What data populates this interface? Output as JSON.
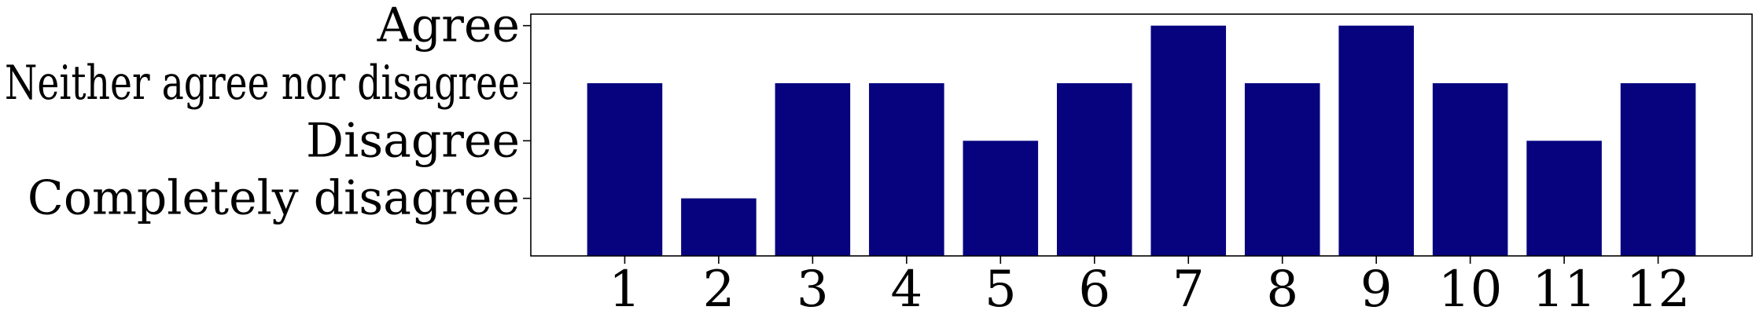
{
  "chart_data": {
    "type": "bar",
    "title": "",
    "xlabel": "",
    "ylabel": "",
    "categories": [
      "1",
      "2",
      "3",
      "4",
      "5",
      "6",
      "7",
      "8",
      "9",
      "10",
      "11",
      "12"
    ],
    "values": [
      3,
      1,
      3,
      3,
      2,
      3,
      4,
      3,
      4,
      3,
      2,
      3
    ],
    "y_ticks": [
      {
        "value": 1,
        "label": "Completely disagree"
      },
      {
        "value": 2,
        "label": "Disagree"
      },
      {
        "value": 3,
        "label": "Neither agree nor disagree"
      },
      {
        "value": 4,
        "label": "Agree"
      }
    ],
    "ylim": [
      0,
      4.2
    ],
    "xlim": [
      0,
      13
    ],
    "grid": false,
    "legend": "none",
    "bar_color": "#07037f"
  }
}
